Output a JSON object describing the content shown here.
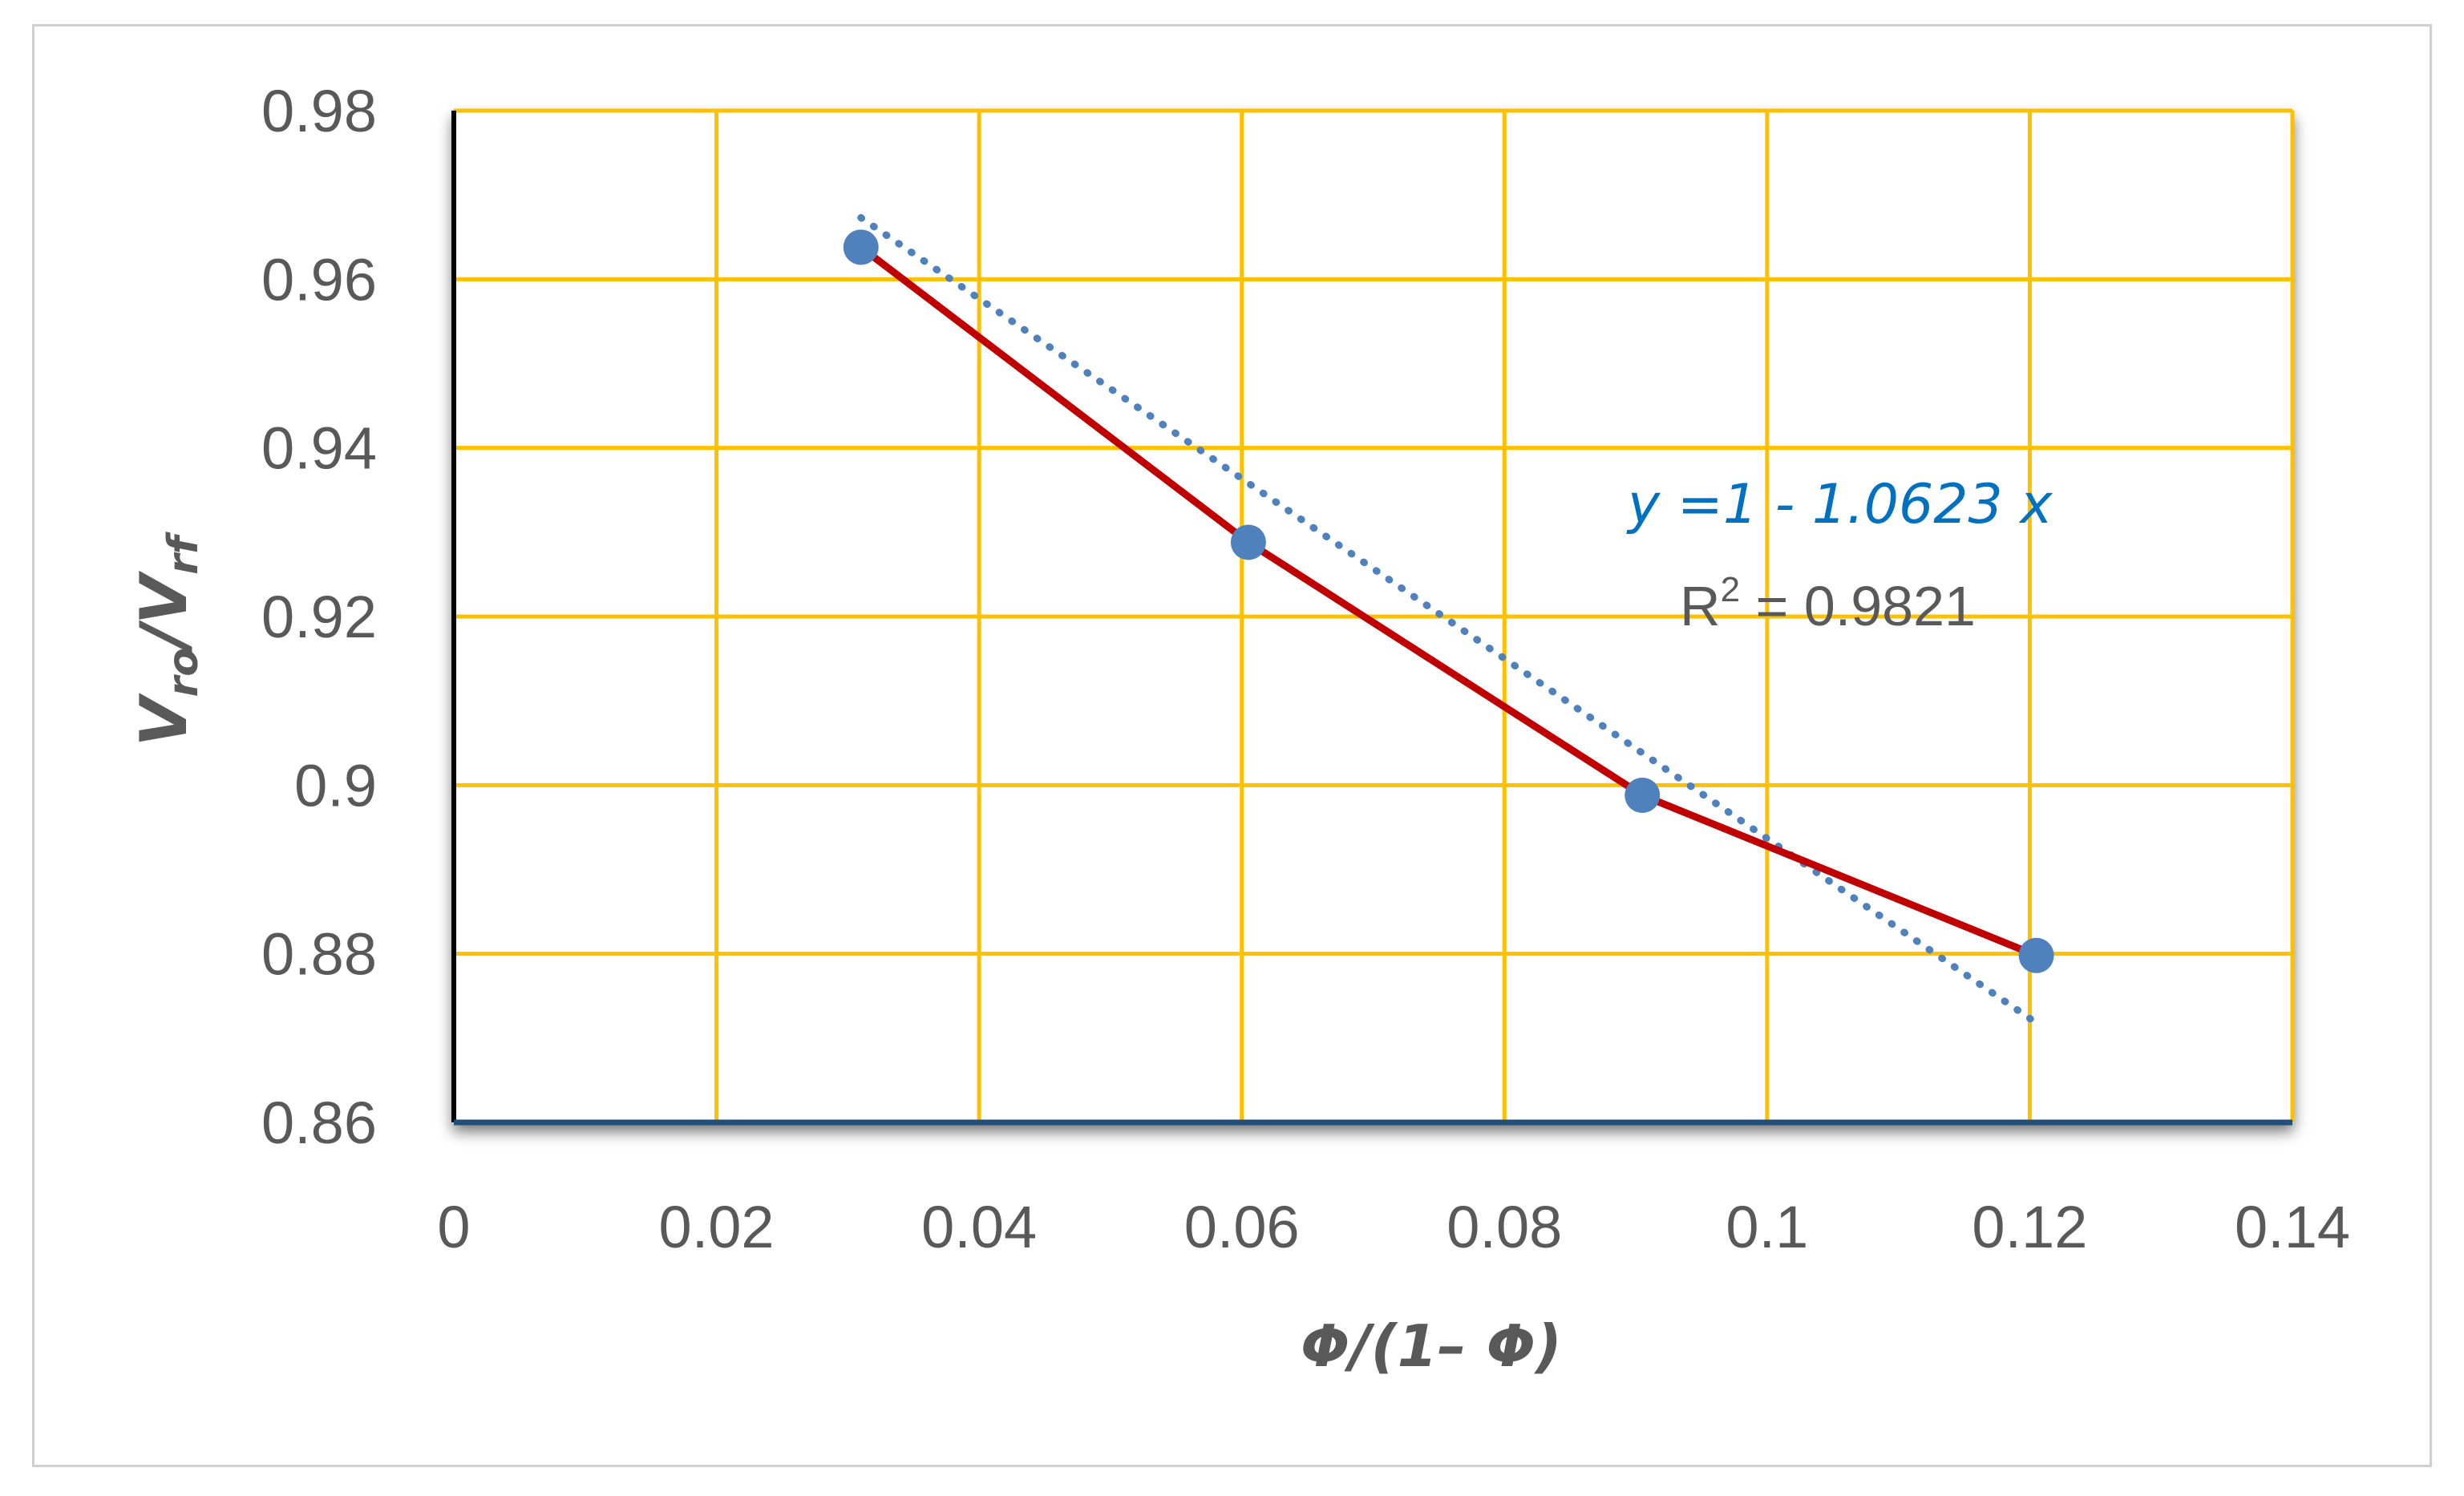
{
  "chart_data": {
    "type": "scatter",
    "xlabel": "Φ/(1– Φ)",
    "ylabel_main": "V",
    "ylabel_sub1": "ro",
    "ylabel_mid": "/V",
    "ylabel_sub2": "rf",
    "xlim": [
      0,
      0.14
    ],
    "ylim": [
      0.86,
      0.98
    ],
    "x_ticks": [
      "0",
      "0.02",
      "0.04",
      "0.06",
      "0.08",
      "0.1",
      "0.12",
      "0.14"
    ],
    "y_ticks": [
      "0.86",
      "0.88",
      "0.9",
      "0.92",
      "0.94",
      "0.96",
      "0.98"
    ],
    "grid": true,
    "series": [
      {
        "x": [
          0.031,
          0.0605,
          0.0905,
          0.1205
        ],
        "y": [
          0.9638,
          0.9288,
          0.8988,
          0.8798
        ],
        "color": "#c00000",
        "marker_color": "#4f81bd"
      }
    ],
    "trendline": {
      "x": [
        0.031,
        0.1205
      ],
      "y": [
        0.9673,
        0.8718
      ],
      "color": "#4f81bd",
      "style": "dotted"
    },
    "annotations": {
      "equation": "y =1 - 1.0623 x",
      "equation_color": "#0070c0",
      "r2_prefix": "R",
      "r2_sup": "2",
      "r2_value": " = 0.9821"
    },
    "colors": {
      "grid": "#ffc000",
      "axis": "#000000"
    }
  }
}
